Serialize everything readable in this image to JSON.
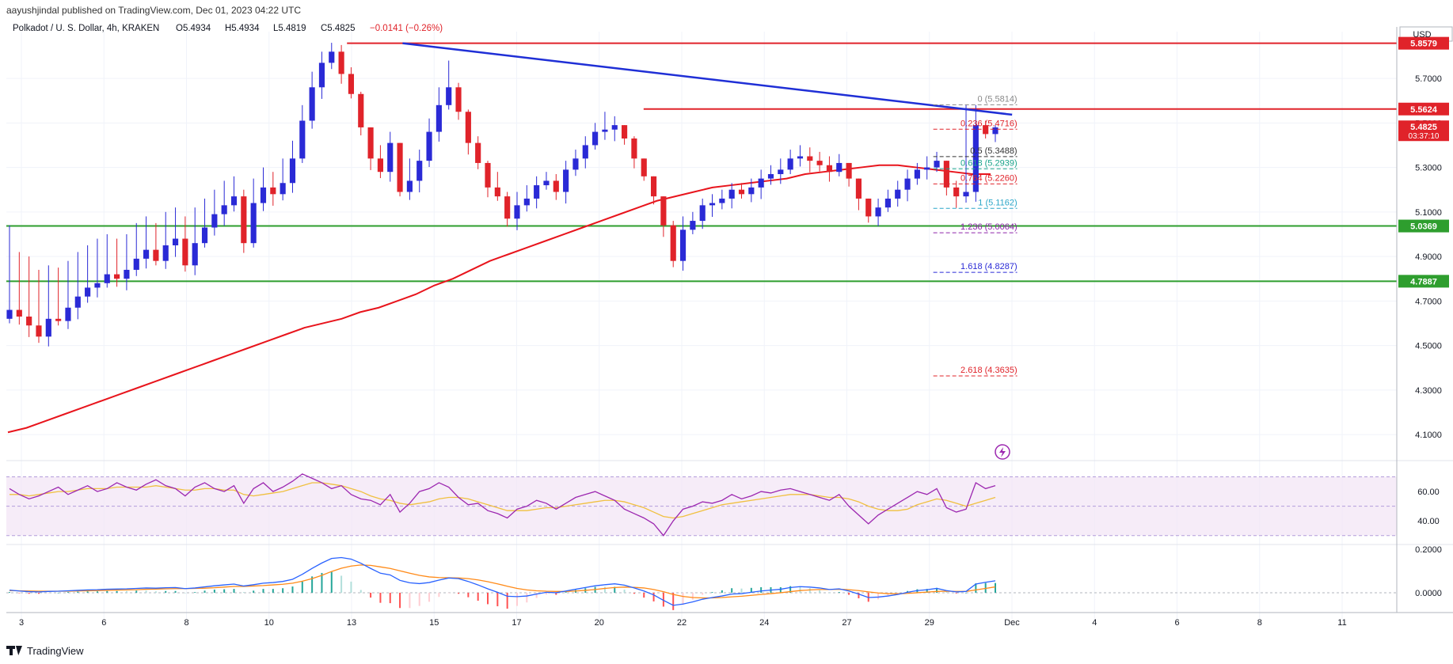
{
  "publisher_line": "aayushjindal published on TradingView.com, Dec 01, 2023 04:22 UTC",
  "symbol_line": {
    "symbol": "Polkadot / U. S. Dollar, 4h, KRAKEN",
    "open": "O5.4934",
    "high": "H5.4934",
    "low": "L5.4819",
    "close": "C5.4825",
    "change": "−0.0141 (−0.26%)"
  },
  "currency": "USD",
  "footer_brand": "TradingView",
  "colors": {
    "up": "#2a2ad6",
    "down": "#e0232a",
    "ma": "#e8141c",
    "trendline": "#1f2fd6",
    "support": "#2e9e2e",
    "resistance": "#e0232a",
    "rsi": "#9c27b0",
    "rsi_ma": "#f0c040",
    "macd": "#2962ff",
    "macd_signal": "#ff8a18"
  },
  "chart_data": [
    {
      "type": "candlestick",
      "title": "Polkadot / U. S. Dollar, 4h, KRAKEN",
      "x_tick_labels": [
        "3",
        "6",
        "8",
        "10",
        "13",
        "15",
        "17",
        "20",
        "22",
        "24",
        "27",
        "29",
        "Dec",
        "4",
        "6",
        "8",
        "11"
      ],
      "y_tick_labels": [
        "5.7000",
        "5.5000",
        "5.3000",
        "5.1000",
        "4.9000",
        "4.7000",
        "4.5000",
        "4.3000",
        "4.1000"
      ],
      "ylim": [
        3.99,
        5.91
      ],
      "price_labels": [
        {
          "value": 5.8579,
          "text": "5.8579",
          "kind": "resistance"
        },
        {
          "value": 5.5624,
          "text": "5.5624",
          "kind": "resistance"
        },
        {
          "value": 5.4825,
          "text": "5.4825",
          "sub": "03:37:10",
          "kind": "last"
        },
        {
          "value": 5.0369,
          "text": "5.0369",
          "kind": "support"
        },
        {
          "value": 4.7887,
          "text": "4.7887",
          "kind": "support"
        }
      ],
      "horizontal_lines": [
        {
          "value": 5.8579,
          "kind": "resistance",
          "from": 14.7,
          "to": 60
        },
        {
          "value": 5.5624,
          "kind": "resistance",
          "from": 27.5,
          "to": 60
        },
        {
          "value": 5.0369,
          "kind": "support",
          "from": 0,
          "to": 60
        },
        {
          "value": 4.7887,
          "kind": "support",
          "from": 0,
          "to": 60
        }
      ],
      "trendline": {
        "from": [
          17.1,
          5.858
        ],
        "to": [
          43.4,
          5.537
        ]
      },
      "fibonacci": {
        "from": 40.0,
        "to": 42.8,
        "levels": [
          {
            "ratio": "0",
            "value": 5.5814,
            "text": "0 (5.5814)",
            "color": "#8a8a8a"
          },
          {
            "ratio": "0.236",
            "value": 5.4716,
            "text": "0.236 (5.4716)",
            "color": "#e0232a"
          },
          {
            "ratio": "0.5",
            "value": 5.3488,
            "text": "0.5 (5.3488)",
            "color": "#333333"
          },
          {
            "ratio": "0.618",
            "value": 5.2939,
            "text": "0.618 (5.2939)",
            "color": "#19a38a"
          },
          {
            "ratio": "0.764",
            "value": 5.226,
            "text": "0.764 (5.2260)",
            "color": "#e0232a"
          },
          {
            "ratio": "1",
            "value": 5.1162,
            "text": "1 (5.1162)",
            "color": "#2aa6c8"
          },
          {
            "ratio": "1.236",
            "value": 5.0064,
            "text": "1.236 (5.0064)",
            "color": "#8e24aa"
          },
          {
            "ratio": "1.618",
            "value": 4.8287,
            "text": "1.618 (4.8287)",
            "color": "#2a2ad6"
          },
          {
            "ratio": "2.618",
            "value": 4.3635,
            "text": "2.618 (4.3635)",
            "color": "#e0232a"
          }
        ]
      },
      "series_close": [
        4.66,
        4.63,
        4.59,
        4.54,
        4.62,
        4.61,
        4.67,
        4.72,
        4.76,
        4.78,
        4.82,
        4.8,
        4.84,
        4.89,
        4.93,
        4.88,
        4.95,
        4.98,
        4.86,
        4.96,
        5.03,
        5.09,
        5.13,
        5.17,
        4.96,
        5.14,
        5.21,
        5.18,
        5.23,
        5.34,
        5.51,
        5.66,
        5.77,
        5.82,
        5.72,
        5.63,
        5.48,
        5.34,
        5.28,
        5.41,
        5.19,
        5.24,
        5.33,
        5.46,
        5.58,
        5.66,
        5.55,
        5.41,
        5.32,
        5.21,
        5.17,
        5.07,
        5.13,
        5.16,
        5.22,
        5.24,
        5.19,
        5.29,
        5.34,
        5.4,
        5.46,
        5.47,
        5.49,
        5.43,
        5.34,
        5.26,
        5.17,
        5.04,
        4.88,
        5.02,
        5.06,
        5.13,
        5.14,
        5.16,
        5.2,
        5.18,
        5.21,
        5.25,
        5.27,
        5.29,
        5.34,
        5.35,
        5.33,
        5.31,
        5.28,
        5.32,
        5.25,
        5.16,
        5.08,
        5.12,
        5.16,
        5.2,
        5.25,
        5.29,
        5.3,
        5.33,
        5.21,
        5.17,
        5.19,
        5.49,
        5.45,
        5.48
      ],
      "ma_period": 100,
      "ma_values": [
        4.11,
        4.13,
        4.16,
        4.19,
        4.22,
        4.25,
        4.28,
        4.31,
        4.34,
        4.37,
        4.4,
        4.43,
        4.46,
        4.49,
        4.52,
        4.55,
        4.58,
        4.6,
        4.62,
        4.65,
        4.67,
        4.7,
        4.73,
        4.77,
        4.8,
        4.84,
        4.88,
        4.91,
        4.94,
        4.97,
        5.0,
        5.03,
        5.06,
        5.09,
        5.12,
        5.15,
        5.17,
        5.19,
        5.21,
        5.22,
        5.23,
        5.24,
        5.25,
        5.27,
        5.28,
        5.29,
        5.3,
        5.31,
        5.31,
        5.3,
        5.29,
        5.28,
        5.27,
        5.27
      ],
      "ma_x_start": 0.5,
      "ma_x_step": 1.05
    },
    {
      "type": "line",
      "title": "RSI",
      "y_tick_labels": [
        "60.00",
        "40.00"
      ],
      "ylim": [
        25,
        80
      ],
      "band": [
        30,
        70
      ],
      "rsi_values": [
        62,
        58,
        55,
        57,
        60,
        63,
        58,
        61,
        64,
        60,
        62,
        66,
        63,
        61,
        65,
        68,
        64,
        62,
        57,
        63,
        66,
        62,
        60,
        64,
        52,
        62,
        66,
        60,
        63,
        67,
        72,
        69,
        66,
        62,
        64,
        58,
        55,
        54,
        51,
        58,
        46,
        52,
        60,
        62,
        66,
        63,
        56,
        51,
        52,
        47,
        45,
        42,
        48,
        50,
        54,
        52,
        48,
        52,
        56,
        58,
        60,
        57,
        54,
        48,
        45,
        42,
        38,
        30,
        40,
        48,
        50,
        53,
        52,
        54,
        58,
        55,
        57,
        60,
        59,
        61,
        62,
        60,
        58,
        56,
        54,
        58,
        50,
        44,
        38,
        44,
        48,
        52,
        56,
        60,
        58,
        62,
        49,
        46,
        48,
        66,
        62,
        64
      ],
      "rsi_ma_values": [
        58,
        58,
        57,
        58,
        59,
        60,
        60,
        61,
        62,
        62,
        62,
        63,
        63,
        63,
        63,
        64,
        63,
        62,
        61,
        61,
        62,
        62,
        61,
        61,
        58,
        57,
        58,
        59,
        60,
        62,
        64,
        66,
        66,
        65,
        64,
        62,
        60,
        57,
        55,
        54,
        52,
        51,
        52,
        53,
        55,
        56,
        56,
        55,
        53,
        51,
        49,
        47,
        47,
        47,
        48,
        49,
        49,
        50,
        51,
        52,
        53,
        54,
        54,
        53,
        51,
        49,
        46,
        43,
        42,
        43,
        45,
        47,
        49,
        51,
        52,
        53,
        54,
        55,
        56,
        57,
        58,
        58,
        58,
        57,
        56,
        56,
        55,
        53,
        50,
        48,
        47,
        47,
        48,
        51,
        53,
        55,
        54,
        52,
        50,
        52,
        54,
        56
      ]
    },
    {
      "type": "line",
      "title": "MACD",
      "y_tick_labels": [
        "0.2000",
        "0.0000"
      ],
      "ylim": [
        -0.095,
        0.215
      ],
      "macd_values": [
        0.012,
        0.008,
        0.005,
        0.004,
        0.006,
        0.007,
        0.009,
        0.011,
        0.013,
        0.014,
        0.016,
        0.017,
        0.018,
        0.02,
        0.022,
        0.021,
        0.023,
        0.024,
        0.019,
        0.022,
        0.027,
        0.032,
        0.036,
        0.04,
        0.031,
        0.037,
        0.044,
        0.047,
        0.052,
        0.062,
        0.085,
        0.112,
        0.137,
        0.158,
        0.162,
        0.155,
        0.136,
        0.112,
        0.09,
        0.082,
        0.057,
        0.046,
        0.042,
        0.047,
        0.058,
        0.068,
        0.065,
        0.052,
        0.036,
        0.018,
        0.002,
        -0.016,
        -0.018,
        -0.015,
        -0.006,
        0.002,
        0.0,
        0.008,
        0.016,
        0.024,
        0.032,
        0.037,
        0.041,
        0.035,
        0.022,
        0.008,
        -0.01,
        -0.035,
        -0.058,
        -0.052,
        -0.042,
        -0.03,
        -0.022,
        -0.015,
        -0.006,
        -0.004,
        0.002,
        0.008,
        0.012,
        0.016,
        0.024,
        0.028,
        0.026,
        0.022,
        0.015,
        0.018,
        0.008,
        -0.006,
        -0.022,
        -0.02,
        -0.015,
        -0.008,
        0.002,
        0.01,
        0.014,
        0.02,
        0.01,
        0.004,
        0.006,
        0.04,
        0.048,
        0.055
      ],
      "signal_values": [
        0.01,
        0.009,
        0.008,
        0.007,
        0.007,
        0.007,
        0.007,
        0.008,
        0.009,
        0.01,
        0.011,
        0.012,
        0.013,
        0.014,
        0.016,
        0.017,
        0.018,
        0.019,
        0.019,
        0.02,
        0.021,
        0.023,
        0.026,
        0.029,
        0.029,
        0.031,
        0.033,
        0.036,
        0.039,
        0.044,
        0.053,
        0.065,
        0.08,
        0.098,
        0.113,
        0.123,
        0.128,
        0.126,
        0.119,
        0.112,
        0.101,
        0.09,
        0.08,
        0.073,
        0.07,
        0.069,
        0.068,
        0.065,
        0.059,
        0.051,
        0.041,
        0.03,
        0.02,
        0.013,
        0.009,
        0.007,
        0.006,
        0.006,
        0.008,
        0.011,
        0.015,
        0.02,
        0.024,
        0.026,
        0.025,
        0.022,
        0.015,
        0.005,
        -0.008,
        -0.017,
        -0.022,
        -0.024,
        -0.024,
        -0.022,
        -0.019,
        -0.016,
        -0.012,
        -0.008,
        -0.004,
        0.0,
        0.005,
        0.01,
        0.013,
        0.015,
        0.015,
        0.016,
        0.014,
        0.01,
        0.004,
        -0.001,
        -0.004,
        -0.005,
        -0.003,
        0.0,
        0.003,
        0.006,
        0.007,
        0.006,
        0.006,
        0.013,
        0.02,
        0.027
      ]
    }
  ]
}
